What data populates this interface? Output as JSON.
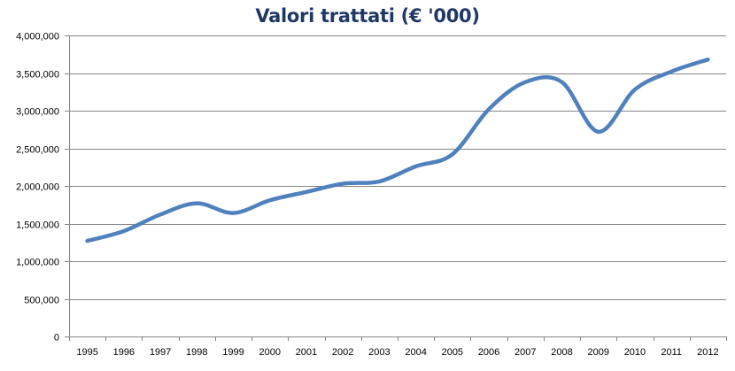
{
  "chart_data": {
    "type": "line",
    "title": "Valori trattati (€ '000)",
    "xlabel": "",
    "ylabel": "",
    "categories": [
      "1995",
      "1996",
      "1997",
      "1998",
      "1999",
      "2000",
      "2001",
      "2002",
      "2003",
      "2004",
      "2005",
      "2006",
      "2007",
      "2008",
      "2009",
      "2010",
      "2011",
      "2012"
    ],
    "series": [
      {
        "values": [
          1270000,
          1400000,
          1620000,
          1770000,
          1640000,
          1810000,
          1920000,
          2030000,
          2060000,
          2260000,
          2420000,
          3020000,
          3380000,
          3380000,
          2720000,
          3280000,
          3520000,
          3680000
        ]
      }
    ],
    "ylim": [
      0,
      4000000
    ],
    "yticks": [
      "0",
      "500,000",
      "1,000,000",
      "1,500,000",
      "2,000,000",
      "2,500,000",
      "3,000,000",
      "3,500,000",
      "4,000,000"
    ],
    "grid": true,
    "colors": {
      "line": "#4f81bd",
      "grid": "#868686",
      "title": "#1f3864"
    }
  }
}
